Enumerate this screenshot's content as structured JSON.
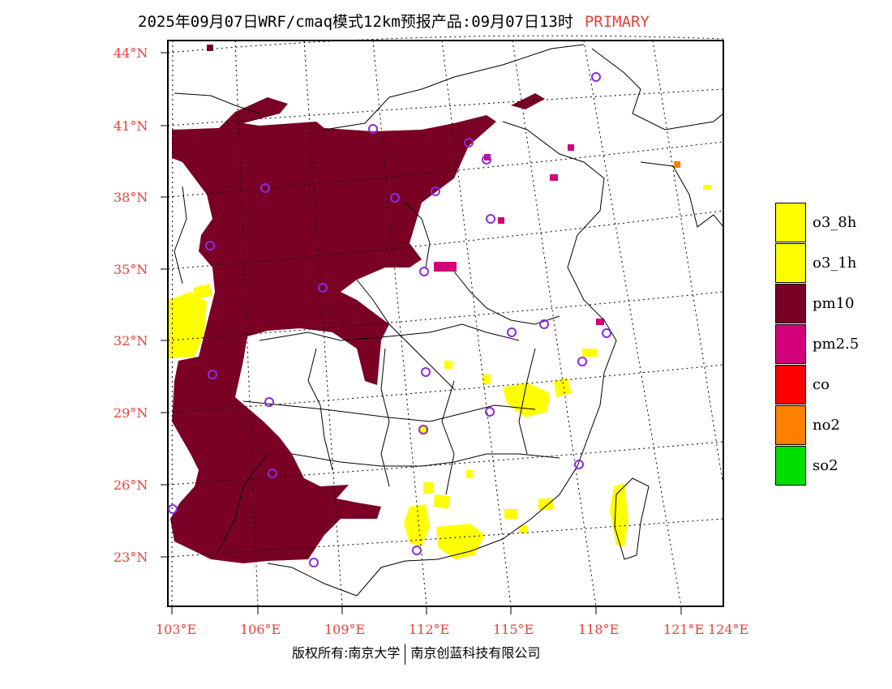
{
  "header": {
    "title": "2025年09月07日WRF/cmaq模式12km预报产品:09月07日13时",
    "pollutant_tag": "PRIMARY"
  },
  "axes": {
    "lat_labels": [
      "44°N",
      "41°N",
      "38°N",
      "35°N",
      "32°N",
      "29°N",
      "26°N",
      "23°N"
    ],
    "lon_labels": [
      "103°E",
      "106°E",
      "109°E",
      "112°E",
      "115°E",
      "118°E",
      "121°E",
      "124°E"
    ]
  },
  "legend": [
    {
      "label": "o3_8h",
      "color": "#ffff00"
    },
    {
      "label": "o3_1h",
      "color": "#ffff00"
    },
    {
      "label": "pm10",
      "color": "#7a0026"
    },
    {
      "label": "pm2.5",
      "color": "#d2007a"
    },
    {
      "label": "co",
      "color": "#ff0000"
    },
    {
      "label": "no2",
      "color": "#ff7f00"
    },
    {
      "label": "so2",
      "color": "#00dd00"
    }
  ],
  "footer": {
    "left": "版权所有:南京大学",
    "right": "南京创蓝科技有限公司"
  },
  "colors": {
    "pm10": "#7a0026",
    "o3": "#ffff00",
    "pm25": "#d2007a",
    "no2": "#ff7f00",
    "station": "#8a2be2",
    "label": "#e8403a"
  }
}
